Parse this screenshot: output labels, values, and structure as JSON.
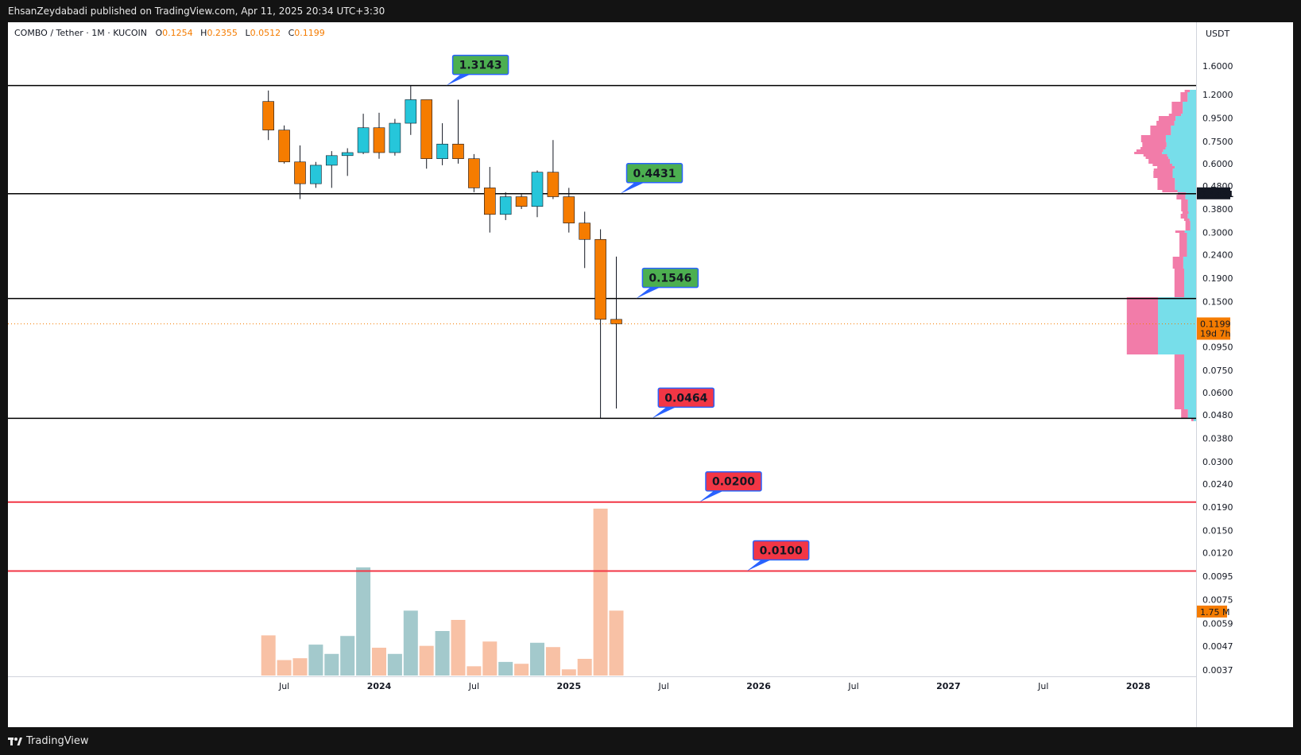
{
  "header": {
    "published": "EhsanZeydabadi published on TradingView.com, Apr 11, 2025 20:34 UTC+3:30"
  },
  "footer": {
    "brand": "TradingView"
  },
  "legend": {
    "symbol": "COMBO / Tether · 1M · KUCOIN",
    "o_label": "O",
    "o": "0.1254",
    "h_label": "H",
    "h": "0.2355",
    "l_label": "L",
    "l": "0.0512",
    "c_label": "C",
    "c": "0.1199"
  },
  "chart_data": {
    "type": "candlestick",
    "title": "COMBO / Tether · 1M · KUCOIN",
    "y_axis_label": "USDT",
    "y_scale": "log",
    "y_ticks": [
      "1.6000",
      "1.2000",
      "0.9500",
      "0.7500",
      "0.6000",
      "0.4800",
      "0.3800",
      "0.3000",
      "0.2400",
      "0.1900",
      "0.1500",
      "0.0950",
      "0.0750",
      "0.0600",
      "0.0480",
      "0.0380",
      "0.0300",
      "0.0240",
      "0.0190",
      "0.0150",
      "0.0120",
      "0.0095",
      "0.0075",
      "0.0059",
      "0.0047",
      "0.0037"
    ],
    "x_ticks": [
      {
        "label": "Jul",
        "date": "2023-07",
        "bold": false
      },
      {
        "label": "2024",
        "date": "2024-01",
        "bold": true
      },
      {
        "label": "Jul",
        "date": "2024-07",
        "bold": false
      },
      {
        "label": "2025",
        "date": "2025-01",
        "bold": true
      },
      {
        "label": "Jul",
        "date": "2025-07",
        "bold": false
      },
      {
        "label": "2026",
        "date": "2026-01",
        "bold": true
      },
      {
        "label": "Jul",
        "date": "2026-07",
        "bold": false
      },
      {
        "label": "2027",
        "date": "2027-01",
        "bold": true
      },
      {
        "label": "Jul",
        "date": "2027-07",
        "bold": false
      },
      {
        "label": "2028",
        "date": "2028-01",
        "bold": true
      }
    ],
    "candles": [
      {
        "date": "2023-06",
        "o": 1.12,
        "h": 1.25,
        "l": 0.76,
        "c": 0.84,
        "v": 0.65
      },
      {
        "date": "2023-07",
        "o": 0.84,
        "h": 0.88,
        "l": 0.6,
        "c": 0.61,
        "v": 0.25
      },
      {
        "date": "2023-08",
        "o": 0.61,
        "h": 0.72,
        "l": 0.42,
        "c": 0.49,
        "v": 0.28
      },
      {
        "date": "2023-09",
        "o": 0.49,
        "h": 0.61,
        "l": 0.47,
        "c": 0.59,
        "v": 0.5
      },
      {
        "date": "2023-10",
        "o": 0.59,
        "h": 0.68,
        "l": 0.47,
        "c": 0.65,
        "v": 0.35
      },
      {
        "date": "2023-11",
        "o": 0.65,
        "h": 0.7,
        "l": 0.53,
        "c": 0.67,
        "v": 0.64
      },
      {
        "date": "2023-12",
        "o": 0.67,
        "h": 0.99,
        "l": 0.66,
        "c": 0.86,
        "v": 1.75
      },
      {
        "date": "2024-01",
        "o": 0.86,
        "h": 1.0,
        "l": 0.63,
        "c": 0.67,
        "v": 0.45
      },
      {
        "date": "2024-02",
        "o": 0.67,
        "h": 0.94,
        "l": 0.65,
        "c": 0.9,
        "v": 0.35
      },
      {
        "date": "2024-03",
        "o": 0.9,
        "h": 1.3143,
        "l": 0.8,
        "c": 1.14,
        "v": 1.05
      },
      {
        "date": "2024-04",
        "o": 1.14,
        "h": 1.14,
        "l": 0.57,
        "c": 0.63,
        "v": 0.48
      },
      {
        "date": "2024-05",
        "o": 0.63,
        "h": 0.9,
        "l": 0.59,
        "c": 0.73,
        "v": 0.72
      },
      {
        "date": "2024-06",
        "o": 0.73,
        "h": 1.14,
        "l": 0.6,
        "c": 0.63,
        "v": 0.9
      },
      {
        "date": "2024-07",
        "o": 0.63,
        "h": 0.66,
        "l": 0.45,
        "c": 0.47,
        "v": 0.15
      },
      {
        "date": "2024-08",
        "o": 0.47,
        "h": 0.58,
        "l": 0.3,
        "c": 0.36,
        "v": 0.55
      },
      {
        "date": "2024-09",
        "o": 0.36,
        "h": 0.45,
        "l": 0.34,
        "c": 0.43,
        "v": 0.22
      },
      {
        "date": "2024-10",
        "o": 0.43,
        "h": 0.44,
        "l": 0.38,
        "c": 0.39,
        "v": 0.19
      },
      {
        "date": "2024-11",
        "o": 0.39,
        "h": 0.56,
        "l": 0.35,
        "c": 0.55,
        "v": 0.53
      },
      {
        "date": "2024-12",
        "o": 0.55,
        "h": 0.76,
        "l": 0.42,
        "c": 0.43,
        "v": 0.46
      },
      {
        "date": "2025-01",
        "o": 0.43,
        "h": 0.47,
        "l": 0.3,
        "c": 0.33,
        "v": 0.1
      },
      {
        "date": "2025-02",
        "o": 0.33,
        "h": 0.37,
        "l": 0.21,
        "c": 0.28,
        "v": 0.27
      },
      {
        "date": "2025-03",
        "o": 0.28,
        "h": 0.31,
        "l": 0.0464,
        "c": 0.1254,
        "v": 2.7
      },
      {
        "date": "2025-04",
        "o": 0.1254,
        "h": 0.2355,
        "l": 0.0512,
        "c": 0.1199,
        "v": 1.05
      }
    ],
    "price_lines": [
      {
        "value": 1.3143,
        "label": "1.3143",
        "color": "#000000",
        "label_bg": "#4caf50",
        "label_date": "2024-05"
      },
      {
        "value": 0.4431,
        "label": "0.4431",
        "color": "#000000",
        "label_bg": "#4caf50",
        "label_date": "2025-04"
      },
      {
        "value": 0.1546,
        "label": "0.1546",
        "color": "#000000",
        "label_bg": "#4caf50",
        "label_date": "2025-05"
      },
      {
        "value": 0.0464,
        "label": "0.0464",
        "color": "#000000",
        "label_bg": "#f23645",
        "label_date": "2025-06"
      },
      {
        "value": 0.02,
        "label": "0.0200",
        "color": "#f23645",
        "label_bg": "#f23645",
        "label_date": "2025-09"
      },
      {
        "value": 0.01,
        "label": "0.0100",
        "color": "#f23645",
        "label_bg": "#f23645",
        "label_date": "2025-12"
      }
    ],
    "last_price": {
      "value": 0.1199,
      "label": "0.1199",
      "countdown": "19d 7h"
    },
    "highlighted_price": {
      "value": 0.4431,
      "label": "0.4431"
    },
    "volume_marker": {
      "label": "1.75 M"
    },
    "colors": {
      "up": "#26c6da",
      "down": "#f57c00",
      "vol_up": "#a3c9cc",
      "vol_down": "#f8c1a5",
      "vprofile_up": "#5fd8e6",
      "vprofile_down": "#f0659a"
    }
  }
}
